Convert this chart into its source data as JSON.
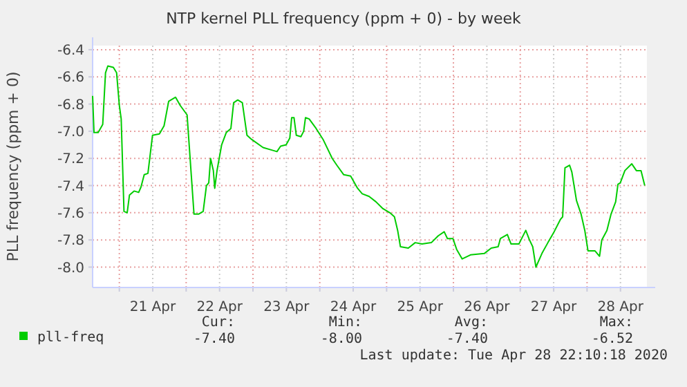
{
  "chart_data": {
    "type": "line",
    "title": "NTP kernel PLL frequency (ppm + 0) - by week",
    "ylabel": "PLL frequency (ppm + 0)",
    "xlim": [
      "2020-04-20T14:24",
      "2020-04-28T21:30"
    ],
    "xticks": [
      {
        "value": "2020-04-21",
        "label": null
      },
      {
        "value": "2020-04-21T12:00",
        "label": "21 Apr"
      },
      {
        "value": "2020-04-22",
        "label": null
      },
      {
        "value": "2020-04-22T12:00",
        "label": "22 Apr"
      },
      {
        "value": "2020-04-23",
        "label": null
      },
      {
        "value": "2020-04-23T12:00",
        "label": "23 Apr"
      },
      {
        "value": "2020-04-24",
        "label": null
      },
      {
        "value": "2020-04-24T12:00",
        "label": "24 Apr"
      },
      {
        "value": "2020-04-25",
        "label": null
      },
      {
        "value": "2020-04-25T12:00",
        "label": "25 Apr"
      },
      {
        "value": "2020-04-26",
        "label": null
      },
      {
        "value": "2020-04-26T12:00",
        "label": "26 Apr"
      },
      {
        "value": "2020-04-27",
        "label": null
      },
      {
        "value": "2020-04-27T12:00",
        "label": "27 Apr"
      },
      {
        "value": "2020-04-28",
        "label": null
      },
      {
        "value": "2020-04-28T12:00",
        "label": "28 Apr"
      }
    ],
    "ylim": [
      -8.15,
      -6.37
    ],
    "yticks": [
      -6.4,
      -6.6,
      -6.8,
      {
        "value": -7,
        "label": "-7.0"
      },
      -7.2,
      -7.4,
      -7.6,
      -7.8,
      {
        "value": -8,
        "label": "-8.0"
      }
    ],
    "grid": true,
    "legend": "bottom",
    "marker": "none",
    "line_style": "solid",
    "series": [
      {
        "name": "pll-freq",
        "color": "#00cc00",
        "x": [
          "2020-04-20T14:24",
          "2020-04-20T14:54",
          "2020-04-20T16:24",
          "2020-04-20T18:02",
          "2020-04-20T19:02",
          "2020-04-20T19:52",
          "2020-04-20T21:51",
          "2020-04-20T23:01",
          "2020-04-21T00:00",
          "2020-04-21T00:40",
          "2020-04-21T01:40",
          "2020-04-21T02:49",
          "2020-04-21T03:38",
          "2020-04-21T05:18",
          "2020-04-21T06:57",
          "2020-04-21T07:47",
          "2020-04-21T08:56",
          "2020-04-21T10:16",
          "2020-04-21T11:55",
          "2020-04-21T14:24",
          "2020-04-21T16:04",
          "2020-04-21T17:43",
          "2020-04-21T20:12",
          "2020-04-21T21:51",
          "2020-04-22T00:20",
          "2020-04-22T02:49",
          "2020-04-22T04:28",
          "2020-04-22T06:07",
          "2020-04-22T07:17",
          "2020-04-22T08:07",
          "2020-04-22T08:46",
          "2020-04-22T09:46",
          "2020-04-22T10:16",
          "2020-04-22T11:05",
          "2020-04-22T12:45",
          "2020-04-22T14:24",
          "2020-04-22T16:04",
          "2020-04-22T17:03",
          "2020-04-22T18:32",
          "2020-04-22T20:11",
          "2020-04-22T21:51",
          "2020-04-22T23:30",
          "2020-04-23T03:38",
          "2020-04-23T06:57",
          "2020-04-23T08:37",
          "2020-04-23T09:56",
          "2020-04-23T11:55",
          "2020-04-23T13:14",
          "2020-04-23T13:54",
          "2020-04-23T14:44",
          "2020-04-23T15:34",
          "2020-04-23T17:13",
          "2020-04-23T18:13",
          "2020-04-23T18:52",
          "2020-04-23T20:11",
          "2020-04-23T22:41",
          "2020-04-24T01:10",
          "2020-04-24T04:28",
          "2020-04-24T06:07",
          "2020-04-24T08:36",
          "2020-04-24T11:05",
          "2020-04-24T13:34",
          "2020-04-24T15:14",
          "2020-04-24T17:43",
          "2020-04-24T20:12",
          "2020-04-24T22:41",
          "2020-04-25T01:10",
          "2020-04-25T02:49",
          "2020-04-25T03:58",
          "2020-04-25T04:58",
          "2020-04-25T07:47",
          "2020-04-25T10:16",
          "2020-04-25T12:44",
          "2020-04-25T16:04",
          "2020-04-25T18:32",
          "2020-04-25T20:41",
          "2020-04-25T21:51",
          "2020-04-25T23:50",
          "2020-04-26T01:10",
          "2020-04-26T03:09",
          "2020-04-26T06:08",
          "2020-04-26T11:05",
          "2020-04-26T13:35",
          "2020-04-26T16:04",
          "2020-04-26T16:53",
          "2020-04-26T19:22",
          "2020-04-26T20:42",
          "2020-04-26T23:31",
          "2020-04-27T01:59",
          "2020-04-27T03:19",
          "2020-04-27T04:29",
          "2020-04-27T05:38",
          "2020-04-27T07:47",
          "2020-04-27T09:56",
          "2020-04-27T11:55",
          "2020-04-27T14:24",
          "2020-04-27T15:14",
          "2020-04-27T16:04",
          "2020-04-27T17:43",
          "2020-04-27T18:32",
          "2020-04-27T20:12",
          "2020-04-27T21:51",
          "2020-04-27T23:11",
          "2020-04-28T00:20",
          "2020-04-28T02:49",
          "2020-04-28T04:29",
          "2020-04-28T05:18",
          "2020-04-28T07:08",
          "2020-04-28T08:37",
          "2020-04-28T10:16",
          "2020-04-28T11:06",
          "2020-04-28T11:56",
          "2020-04-28T13:35",
          "2020-04-28T16:04",
          "2020-04-28T17:43",
          "2020-04-28T19:23",
          "2020-04-28T20:43"
        ],
        "values": [
          -6.74,
          -7.01,
          -7.01,
          -6.95,
          -6.57,
          -6.52,
          -6.53,
          -6.57,
          -6.81,
          -6.91,
          -7.59,
          -7.6,
          -7.47,
          -7.44,
          -7.45,
          -7.41,
          -7.32,
          -7.31,
          -7.03,
          -7.02,
          -6.96,
          -6.78,
          -6.75,
          -6.81,
          -6.88,
          -7.61,
          -7.61,
          -7.59,
          -7.4,
          -7.38,
          -7.2,
          -7.29,
          -7.42,
          -7.29,
          -7.1,
          -7.01,
          -6.98,
          -6.79,
          -6.77,
          -6.79,
          -7.03,
          -7.06,
          -7.12,
          -7.14,
          -7.15,
          -7.11,
          -7.1,
          -7.05,
          -6.9,
          -6.9,
          -7.03,
          -7.04,
          -7,
          -6.9,
          -6.91,
          -6.98,
          -7.06,
          -7.2,
          -7.25,
          -7.32,
          -7.33,
          -7.42,
          -7.46,
          -7.48,
          -7.52,
          -7.57,
          -7.6,
          -7.63,
          -7.73,
          -7.85,
          -7.86,
          -7.82,
          -7.83,
          -7.82,
          -7.77,
          -7.74,
          -7.79,
          -7.79,
          -7.87,
          -7.94,
          -7.91,
          -7.9,
          -7.86,
          -7.85,
          -7.79,
          -7.76,
          -7.83,
          -7.83,
          -7.73,
          -7.8,
          -7.85,
          -8,
          -7.9,
          -7.82,
          -7.75,
          -7.65,
          -7.63,
          -7.27,
          -7.25,
          -7.3,
          -7.51,
          -7.61,
          -7.73,
          -7.88,
          -7.88,
          -7.92,
          -7.8,
          -7.73,
          -7.61,
          -7.52,
          -7.39,
          -7.38,
          -7.29,
          -7.24,
          -7.29,
          -7.29,
          -7.4
        ]
      }
    ],
    "annotations": [
      "Cur:",
      "Min:",
      "Avg:",
      "Max:",
      "-7.40",
      "-8.00",
      "-7.40",
      "-6.52",
      "Last update: Tue Apr 28 22:10:18 2020"
    ]
  }
}
